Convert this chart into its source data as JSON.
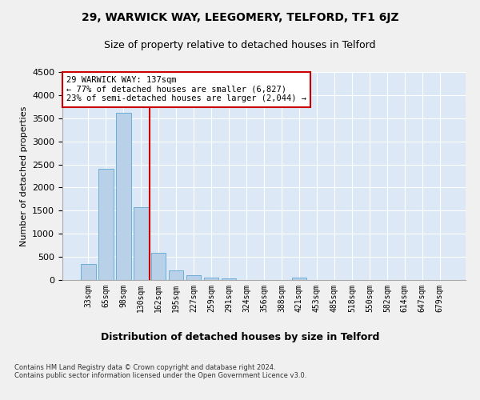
{
  "title1": "29, WARWICK WAY, LEEGOMERY, TELFORD, TF1 6JZ",
  "title2": "Size of property relative to detached houses in Telford",
  "xlabel": "Distribution of detached houses by size in Telford",
  "ylabel": "Number of detached properties",
  "footnote": "Contains HM Land Registry data © Crown copyright and database right 2024.\nContains public sector information licensed under the Open Government Licence v3.0.",
  "categories": [
    "33sqm",
    "65sqm",
    "98sqm",
    "130sqm",
    "162sqm",
    "195sqm",
    "227sqm",
    "259sqm",
    "291sqm",
    "324sqm",
    "356sqm",
    "388sqm",
    "421sqm",
    "453sqm",
    "485sqm",
    "518sqm",
    "550sqm",
    "582sqm",
    "614sqm",
    "647sqm",
    "679sqm"
  ],
  "values": [
    340,
    2400,
    3620,
    1570,
    590,
    200,
    105,
    60,
    40,
    0,
    0,
    0,
    55,
    0,
    0,
    0,
    0,
    0,
    0,
    0,
    0
  ],
  "bar_color": "#b8d0e8",
  "bar_edge_color": "#6baed6",
  "vline_color": "#cc0000",
  "annotation_text": "29 WARWICK WAY: 137sqm\n← 77% of detached houses are smaller (6,827)\n23% of semi-detached houses are larger (2,044) →",
  "annotation_box_facecolor": "#ffffff",
  "annotation_box_edgecolor": "#cc0000",
  "ylim": [
    0,
    4500
  ],
  "yticks": [
    0,
    500,
    1000,
    1500,
    2000,
    2500,
    3000,
    3500,
    4000,
    4500
  ],
  "fig_bg_color": "#f0f0f0",
  "plot_bg_color": "#dce8f5",
  "title1_fontsize": 10,
  "title2_fontsize": 9,
  "xlabel_fontsize": 9,
  "ylabel_fontsize": 8,
  "tick_fontsize": 8,
  "footnote_fontsize": 6
}
